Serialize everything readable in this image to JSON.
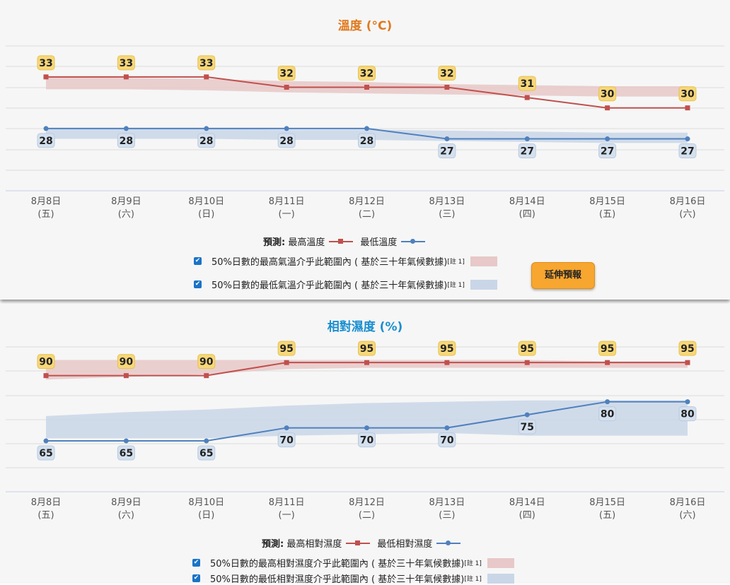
{
  "chart_data": [
    {
      "type": "line",
      "title": "溫度 (°C)",
      "title_color": "#e07a1f",
      "dates": [
        "8月8日",
        "8月9日",
        "8月10日",
        "8月11日",
        "8月12日",
        "8月13日",
        "8月14日",
        "8月15日",
        "8月16日"
      ],
      "weekdays": [
        "(五)",
        "(六)",
        "(日)",
        "(一)",
        "(二)",
        "(三)",
        "(四)",
        "(五)",
        "(六)"
      ],
      "ylim": [
        23,
        36
      ],
      "series": [
        {
          "name": "最高溫度",
          "values": [
            33,
            33,
            33,
            32,
            32,
            32,
            31,
            30,
            30
          ],
          "color": "#c0504d",
          "marker": "square"
        },
        {
          "name": "最低溫度",
          "values": [
            28,
            28,
            28,
            28,
            28,
            27,
            27,
            27,
            27
          ],
          "color": "#4f81bd",
          "marker": "circle"
        }
      ],
      "bands": [
        {
          "name": "50%日數的最高氣溫介乎此範圍內 ( 基於三十年氣候數據)",
          "color": "#e8c8c8",
          "lower": [
            31.8,
            31.8,
            31.7,
            31.5,
            31.4,
            31.3,
            31.2,
            31.1,
            31.1
          ],
          "upper": [
            33.0,
            32.9,
            32.8,
            32.6,
            32.5,
            32.3,
            32.2,
            32.1,
            32.1
          ]
        },
        {
          "name": "50%日數的最低氣溫介乎此範圍內 ( 基於三十年氣候數據)",
          "color": "#c9d6e8",
          "lower": [
            27.0,
            27.0,
            27.0,
            26.9,
            26.9,
            26.8,
            26.7,
            26.6,
            26.6
          ],
          "upper": [
            28.0,
            28.0,
            28.0,
            27.9,
            27.9,
            27.8,
            27.7,
            27.6,
            27.6
          ]
        }
      ],
      "legend": {
        "forecast_label": "預測:",
        "note": "[註 1]"
      }
    },
    {
      "type": "line",
      "title": "相對濕度 (%)",
      "title_color": "#1a8fcf",
      "dates": [
        "8月8日",
        "8月9日",
        "8月10日",
        "8月11日",
        "8月12日",
        "8月13日",
        "8月14日",
        "8月15日",
        "8月16日"
      ],
      "weekdays": [
        "(五)",
        "(六)",
        "(日)",
        "(一)",
        "(二)",
        "(三)",
        "(四)",
        "(五)",
        "(六)"
      ],
      "ylim": [
        55,
        101
      ],
      "series": [
        {
          "name": "最高相對濕度",
          "values": [
            90,
            90,
            90,
            95,
            95,
            95,
            95,
            95,
            95
          ],
          "color": "#c0504d",
          "marker": "square"
        },
        {
          "name": "最低相對濕度",
          "values": [
            65,
            65,
            65,
            70,
            70,
            70,
            75,
            80,
            80
          ],
          "color": "#4f81bd",
          "marker": "circle"
        }
      ],
      "bands": [
        {
          "name": "50%日數的最高相對濕度介乎此範圍內 ( 基於三十年氣候數據)",
          "color": "#e8c8c8",
          "lower": [
            88.5,
            89.5,
            90.5,
            92.5,
            93.0,
            93.0,
            93.0,
            93.0,
            93.0
          ],
          "upper": [
            96.0,
            96.0,
            96.0,
            96.0,
            96.0,
            96.0,
            96.0,
            95.5,
            95.5
          ]
        },
        {
          "name": "50%日數的最低相對濕度介乎此範圍內 ( 基於三十年氣候數據)",
          "color": "#c9d6e8",
          "lower": [
            66.0,
            66.0,
            66.0,
            67.0,
            67.5,
            68.0,
            67.0,
            67.0,
            67.0
          ],
          "upper": [
            74.5,
            76.0,
            77.0,
            78.5,
            79.5,
            80.0,
            80.5,
            80.5,
            80.5
          ]
        }
      ],
      "legend": {
        "forecast_label": "預測:",
        "note": "[註 1]"
      }
    }
  ],
  "extend_button": "延伸預報",
  "checkbox_glyph": "✔"
}
